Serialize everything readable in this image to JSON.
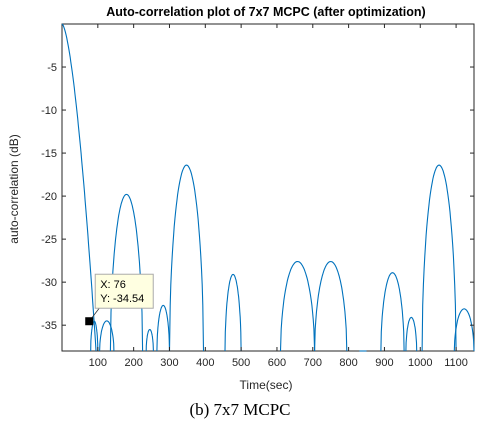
{
  "chart_data": {
    "type": "line",
    "title": "Auto-correlation plot of 7x7 MCPC (after optimization)",
    "xlabel": "Time(sec)",
    "ylabel": "auto-correlation (dB)",
    "xlim": [
      0,
      1150
    ],
    "ylim": [
      -38,
      0
    ],
    "xticks": [
      100,
      200,
      300,
      400,
      500,
      600,
      700,
      800,
      900,
      1000,
      1100
    ],
    "yticks": [
      -5,
      -10,
      -15,
      -20,
      -25,
      -30,
      -35
    ],
    "grid": false,
    "series": [
      {
        "color": "#0072BD",
        "lobes": [
          {
            "start": 0,
            "end": 95,
            "peak": 0,
            "shape": "main"
          },
          {
            "start": 80,
            "end": 100,
            "peak": -34.54
          },
          {
            "start": 105,
            "end": 145,
            "peak": -34.5
          },
          {
            "start": 135,
            "end": 225,
            "peak": -19.8
          },
          {
            "start": 235,
            "end": 255,
            "peak": -35.5
          },
          {
            "start": 265,
            "end": 300,
            "peak": -32.7
          },
          {
            "start": 300,
            "end": 395,
            "peak": -16.4
          },
          {
            "start": 455,
            "end": 500,
            "peak": -29.1
          },
          {
            "start": 610,
            "end": 705,
            "peak": -27.6
          },
          {
            "start": 705,
            "end": 795,
            "peak": -27.6
          },
          {
            "start": 830,
            "end": 850,
            "peak": -38
          },
          {
            "start": 890,
            "end": 955,
            "peak": -28.9
          },
          {
            "start": 960,
            "end": 990,
            "peak": -34.1
          },
          {
            "start": 1005,
            "end": 1100,
            "peak": -16.4
          },
          {
            "start": 1095,
            "end": 1150,
            "peak": -33.1
          }
        ]
      }
    ],
    "datatip": {
      "x_text": "X: 76",
      "y_text": "Y: -34.54",
      "x": 76,
      "y": -34.54
    }
  },
  "caption": "(b) 7x7 MCPC"
}
